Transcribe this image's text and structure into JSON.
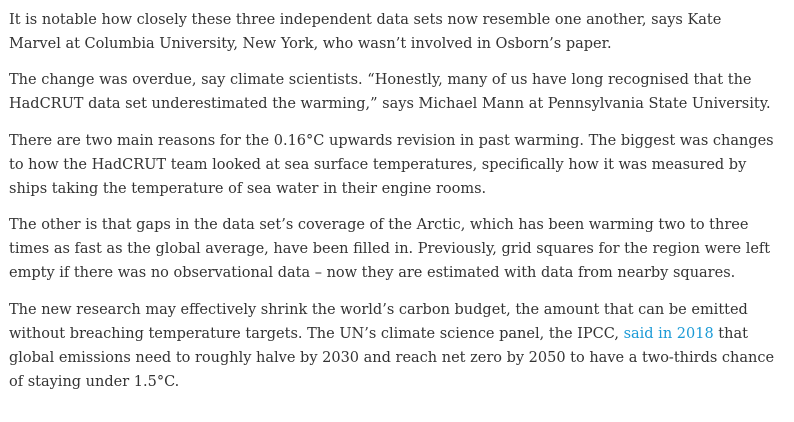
{
  "article": {
    "paragraphs": [
      {
        "lines": [
          "It is notable how closely these three independent data sets now resemble one another, says Kate",
          "Marvel at Columbia University, New York, who wasn’t involved in Osborn’s paper."
        ]
      },
      {
        "lines": [
          "The change was overdue, say climate scientists. “Honestly, many of us have long recognised that the",
          "HadCRUT data set underestimated the warming,” says Michael Mann at Pennsylvania State University."
        ]
      },
      {
        "lines": [
          "There are two main reasons for the 0.16°C upwards revision in past warming. The biggest was changes",
          "to how the HadCRUT team looked at sea surface temperatures, specifically how it was measured by",
          "ships taking the temperature of sea water in their engine rooms."
        ]
      },
      {
        "lines": [
          "The other is that gaps in the data set’s coverage of the Arctic, which has been warming two to three",
          "times as fast as the global average, have been filled in. Previously, grid squares for the region were left",
          "empty if there was no observational data – now they are estimated with data from nearby squares."
        ]
      },
      {
        "lines": [
          "The new research may effectively shrink the world’s carbon budget, the amount that can be emitted",
          "without breaching temperature targets. The UN’s climate science panel, the IPCC, ",
          "global emissions need to roughly halve by 2030 and reach net zero by 2050 to have a two-thirds chance",
          "of staying under 1.5°C."
        ],
        "link_text": "said in 2018",
        "after_link": " that"
      }
    ],
    "link_color": "#1a9ad6",
    "text_color": "#333333"
  }
}
